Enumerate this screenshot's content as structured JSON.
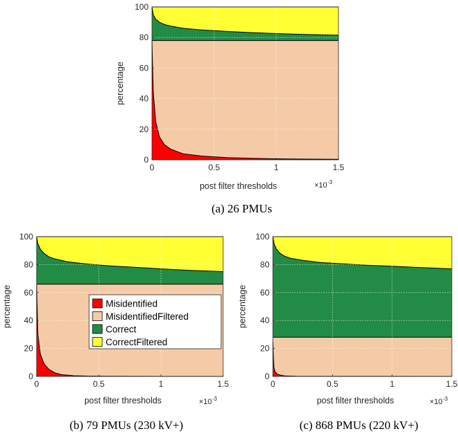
{
  "colors": {
    "misidentified": "#ff0000",
    "misidentified_filtered": "#f5cba7",
    "correct": "#228b45",
    "correct_filtered": "#ffff33"
  },
  "legend": {
    "entries": [
      "Misidentified",
      "MisidentifiedFiltered",
      "Correct",
      "CorrectFiltered"
    ],
    "placement": "center-right of panel b"
  },
  "chart_data": [
    {
      "type": "area",
      "caption": "(a) 26 PMUs",
      "xlabel": "post filter thresholds",
      "ylabel": "percentage",
      "x_multiplier": "×10",
      "x_exponent": "-3",
      "xlim": [
        0,
        1.5
      ],
      "ylim": [
        0,
        100
      ],
      "xticks": [
        "0",
        "0.5",
        "1",
        "1.5"
      ],
      "yticks": [
        "0",
        "20",
        "40",
        "60",
        "80",
        "100"
      ],
      "grid": true,
      "series": [
        {
          "name": "Misidentified",
          "x": [
            0,
            0.01,
            0.03,
            0.06,
            0.1,
            0.15,
            0.25,
            0.4,
            0.6,
            0.8,
            1.0,
            1.2,
            1.5
          ],
          "y": [
            78,
            45,
            25,
            15,
            10,
            7,
            4,
            2.5,
            1.5,
            1,
            0.7,
            0.5,
            0.3
          ]
        },
        {
          "name": "MisidentifiedFiltered",
          "x": [
            0,
            1.5
          ],
          "y": [
            78,
            78
          ]
        },
        {
          "name": "Correct",
          "x": [
            0,
            0.01,
            0.03,
            0.06,
            0.1,
            0.15,
            0.25,
            0.4,
            0.6,
            0.8,
            1.0,
            1.2,
            1.5
          ],
          "y": [
            100,
            95,
            92,
            90,
            88.5,
            87.5,
            86,
            85,
            84,
            83.2,
            82.6,
            82.1,
            81.5
          ]
        },
        {
          "name": "CorrectFiltered",
          "x": [
            0,
            1.5
          ],
          "y": [
            100,
            100
          ]
        }
      ]
    },
    {
      "type": "area",
      "caption": "(b) 79 PMUs (230 kV+)",
      "xlabel": "post filter thresholds",
      "ylabel": "percentage",
      "x_multiplier": "×10",
      "x_exponent": "-3",
      "xlim": [
        0,
        1.5
      ],
      "ylim": [
        0,
        100
      ],
      "xticks": [
        "0",
        "0.5",
        "1",
        "1.5"
      ],
      "yticks": [
        "0",
        "20",
        "40",
        "60",
        "80",
        "100"
      ],
      "grid": true,
      "series": [
        {
          "name": "Misidentified",
          "x": [
            0,
            0.01,
            0.03,
            0.06,
            0.1,
            0.15,
            0.2,
            0.3,
            0.45,
            0.6,
            1.0,
            1.5
          ],
          "y": [
            66,
            30,
            16,
            9,
            5,
            2.5,
            1.3,
            0.5,
            0.2,
            0.1,
            0,
            0
          ]
        },
        {
          "name": "MisidentifiedFiltered",
          "x": [
            0,
            1.5
          ],
          "y": [
            66,
            66
          ]
        },
        {
          "name": "Correct",
          "x": [
            0,
            0.01,
            0.03,
            0.06,
            0.1,
            0.15,
            0.25,
            0.4,
            0.6,
            0.8,
            1.0,
            1.2,
            1.5
          ],
          "y": [
            100,
            95,
            91,
            88,
            85.5,
            84,
            82,
            80.5,
            79,
            78,
            77,
            76,
            75
          ]
        },
        {
          "name": "CorrectFiltered",
          "x": [
            0,
            1.5
          ],
          "y": [
            100,
            100
          ]
        }
      ]
    },
    {
      "type": "area",
      "caption": "(c) 868 PMUs (220 kV+)",
      "xlabel": "post filter thresholds",
      "ylabel": "percentage",
      "x_multiplier": "×10",
      "x_exponent": "-3",
      "xlim": [
        0,
        1.5
      ],
      "ylim": [
        0,
        100
      ],
      "xticks": [
        "0",
        "0.5",
        "1",
        "1.5"
      ],
      "yticks": [
        "0",
        "20",
        "40",
        "60",
        "80",
        "100"
      ],
      "grid": true,
      "series": [
        {
          "name": "Misidentified",
          "x": [
            0,
            0.005,
            0.01,
            0.02,
            0.04,
            0.07,
            0.1,
            0.2,
            1.5
          ],
          "y": [
            25,
            12,
            6,
            3,
            1.5,
            0.8,
            0.4,
            0.1,
            0
          ]
        },
        {
          "name": "MisidentifiedFiltered",
          "x": [
            0,
            1.5
          ],
          "y": [
            28,
            28
          ]
        },
        {
          "name": "Correct",
          "x": [
            0,
            0.01,
            0.03,
            0.06,
            0.1,
            0.15,
            0.25,
            0.4,
            0.6,
            0.8,
            1.0,
            1.2,
            1.5
          ],
          "y": [
            100,
            95,
            91,
            88,
            86,
            84.5,
            83,
            81.5,
            80.5,
            79.5,
            78.8,
            78,
            77
          ]
        },
        {
          "name": "CorrectFiltered",
          "x": [
            0,
            1.5
          ],
          "y": [
            100,
            100
          ]
        }
      ]
    }
  ]
}
